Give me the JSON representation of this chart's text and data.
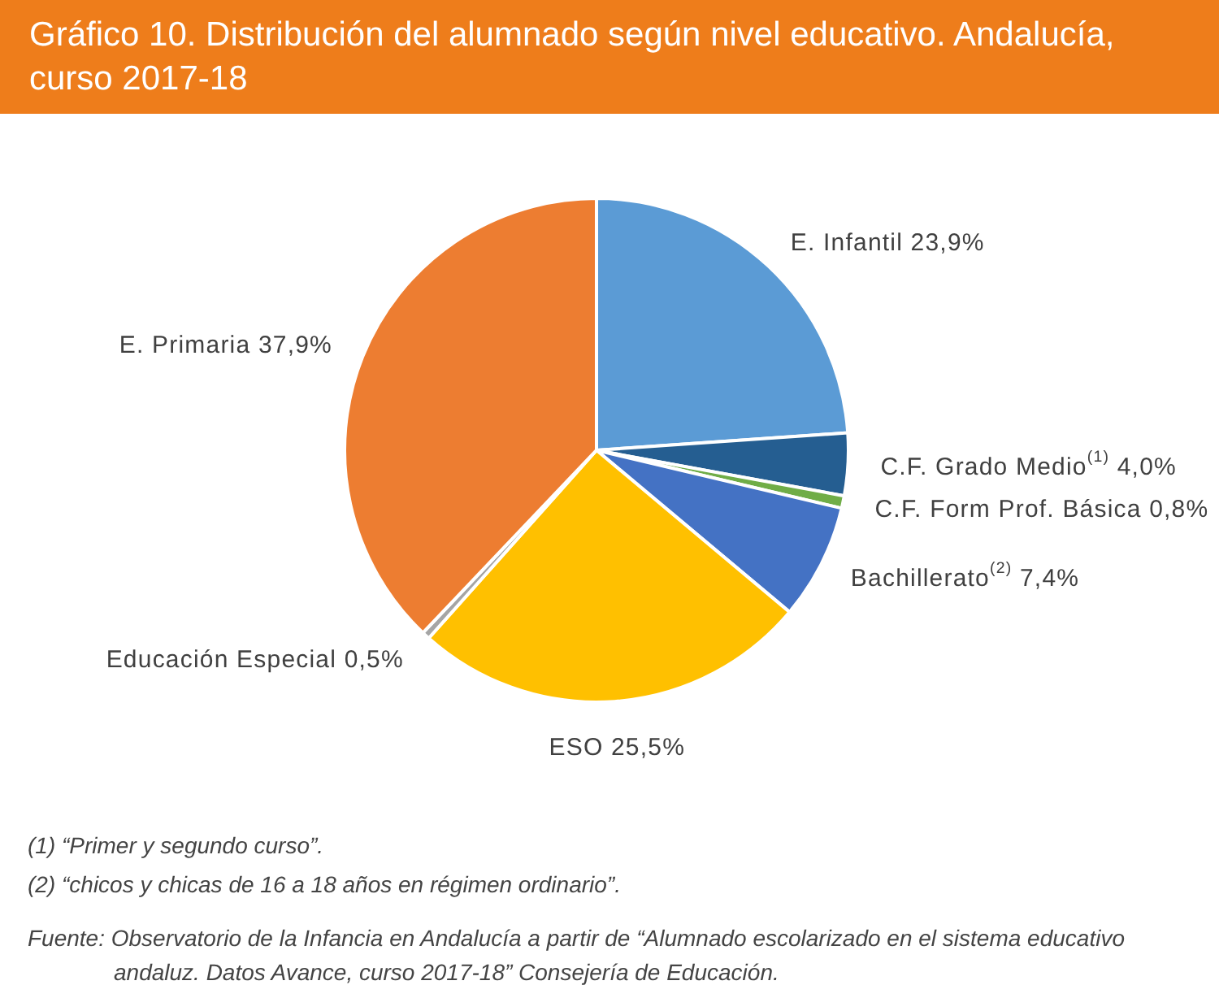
{
  "chart_data": {
    "type": "pie",
    "title": "Gráfico 10. Distribución del alumnado según nivel educativo. Andalucía, curso 2017-18",
    "categories": [
      "E. Infantil",
      "C.F. Grado Medio$^{(1)}$",
      "C.F. Form Prof. Básica",
      "Bachillerato$^{(2)}$",
      "ESO",
      "Educación Especial",
      "E. Primaria"
    ],
    "values": [
      23.9,
      4.0,
      0.8,
      7.4,
      25.5,
      0.5,
      37.9
    ],
    "colors": [
      "#5b9bd5",
      "#255e91",
      "#70ad47",
      "#4472c4",
      "#ffc000",
      "#a5a5a5",
      "#ed7d31"
    ],
    "value_labels": [
      "23,9%",
      "4,0%",
      "0,8%",
      "7,4%",
      "25,5%",
      "0,5%",
      "37,9%"
    ],
    "annotations": [
      "(1) “Primer y segundo curso”.",
      "(2) “chicos y chicas de 16 a 18 años en régimen ordinario”.",
      "Fuente: Observatorio de la Infancia en Andalucía a partir de “Alumnado escolarizado en el sistema educativo andaluz. Datos Avance, curso 2017-18” Consejería de Educación."
    ]
  }
}
